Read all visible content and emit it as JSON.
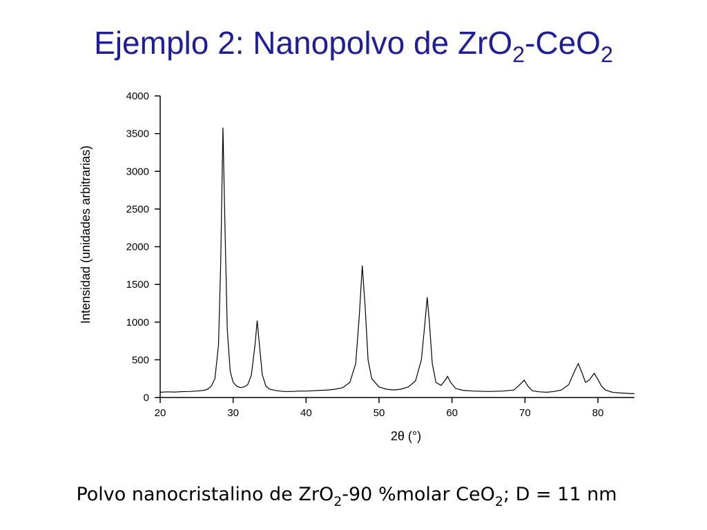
{
  "chart_data": {
    "type": "line",
    "title": [
      "Ejemplo 2: Nanopolvo de ZrO",
      "2",
      "-CeO",
      "2"
    ],
    "caption": [
      "Polvo nanocristalino de ZrO",
      "2",
      "-90 %molar CeO",
      "2",
      "; D = 11 nm"
    ],
    "x_label": "2θ (°)",
    "y_label": "Intensidad (unidades arbitrarias)",
    "color": "#000000",
    "xlim": [
      20,
      85
    ],
    "xticks": [
      20,
      30,
      40,
      50,
      60,
      70,
      80
    ],
    "ylim": [
      0,
      4000
    ],
    "yticks": [
      0,
      500,
      1000,
      1500,
      2000,
      2500,
      3000,
      3500,
      4000
    ],
    "x": [
      20,
      21,
      22,
      23,
      24,
      25,
      26,
      26.5,
      27,
      27.5,
      28,
      28.3,
      28.6,
      28.9,
      29.2,
      29.6,
      30,
      30.5,
      31,
      31.5,
      32,
      32.5,
      33,
      33.3,
      33.6,
      34,
      34.5,
      35,
      36,
      37,
      38,
      39,
      40,
      41,
      42,
      43,
      44,
      45,
      46,
      46.8,
      47.3,
      47.7,
      48.1,
      48.5,
      49,
      50,
      51,
      52,
      53,
      54,
      55,
      55.8,
      56.3,
      56.6,
      56.9,
      57.3,
      57.8,
      58.5,
      59,
      59.4,
      59.8,
      60.5,
      61.5,
      63,
      65,
      67,
      68.5,
      69.4,
      69.9,
      70.4,
      71,
      72,
      73,
      74,
      75,
      76,
      76.8,
      77.3,
      77.8,
      78.3,
      78.8,
      79.5,
      80,
      80.5,
      81,
      82,
      83,
      84,
      85
    ],
    "values": [
      70,
      75,
      72,
      78,
      80,
      85,
      95,
      110,
      150,
      250,
      700,
      1800,
      3580,
      2200,
      900,
      350,
      200,
      150,
      130,
      140,
      170,
      300,
      700,
      1020,
      700,
      300,
      150,
      110,
      90,
      80,
      80,
      85,
      85,
      90,
      95,
      100,
      110,
      130,
      200,
      450,
      1100,
      1750,
      1200,
      500,
      250,
      140,
      110,
      100,
      110,
      140,
      220,
      500,
      1000,
      1330,
      1000,
      450,
      200,
      160,
      220,
      280,
      200,
      120,
      95,
      85,
      80,
      85,
      100,
      180,
      230,
      150,
      90,
      75,
      70,
      80,
      100,
      170,
      350,
      450,
      330,
      200,
      230,
      320,
      240,
      150,
      100,
      70,
      60,
      55,
      50
    ]
  }
}
